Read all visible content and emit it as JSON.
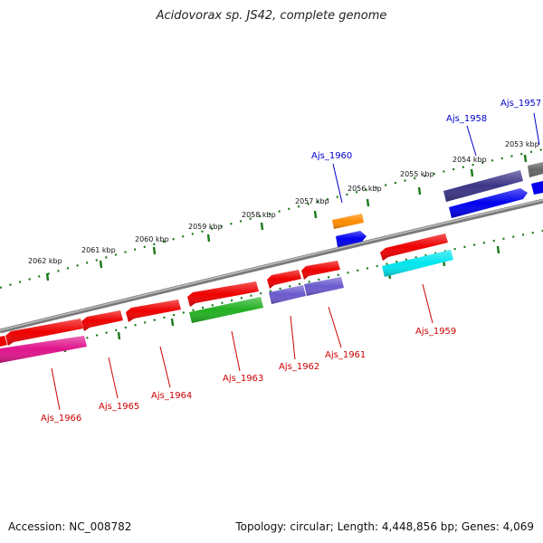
{
  "title": "Acidovorax sp. JS42, complete genome",
  "accession": "Accession: NC_008782",
  "topology": "Topology: circular; Length: 4,448,856 bp; Genes: 4,069",
  "kbp_labels": [
    "2053 kbp",
    "2054 kbp",
    "2055 kbp",
    "2056 kbp",
    "2057 kbp",
    "2058 kbp",
    "2059 kbp",
    "2060 kbp",
    "2061 kbp",
    "2062 kbp"
  ],
  "gene_labels": {
    "ajs1957": "Ajs_1957",
    "ajs1958": "Ajs_1958",
    "ajs1959": "Ajs_1959",
    "ajs1960": "Ajs_1960",
    "ajs1961": "Ajs_1961",
    "ajs1962": "Ajs_1962",
    "ajs1963": "Ajs_1963",
    "ajs1964": "Ajs_1964",
    "ajs1965": "Ajs_1965",
    "ajs1966": "Ajs_1966"
  },
  "colors": {
    "backbone": "#808080",
    "tick": "#1a7a1a",
    "red_gene": "#ee0000",
    "magenta_gene": "#e0148c",
    "green_gene": "#22b022",
    "purple_gene": "#6a5acd",
    "navy_gene": "#3b3486",
    "blue_gene": "#0000ee",
    "orange_gene": "#ff8c00",
    "cyan_gene": "#00e5ee",
    "gray_gene": "#666666"
  }
}
